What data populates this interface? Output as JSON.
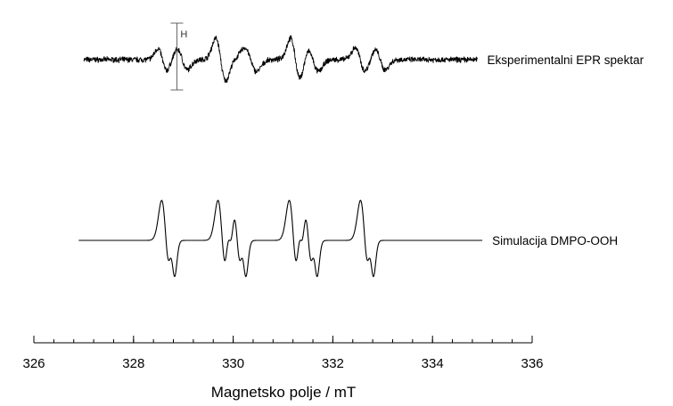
{
  "chart_data": {
    "type": "line",
    "xlabel": "Magnetsko polje  / mT",
    "ylabel": "",
    "xlim": [
      326,
      336
    ],
    "x_ticks_major": [
      "326",
      "328",
      "330",
      "332",
      "334",
      "336"
    ],
    "x_minor_step": 0.4,
    "grid": false,
    "legend": "inline labels at right end of each trace",
    "annotations": [
      {
        "text": "H",
        "x": 328.87
      }
    ],
    "series": [
      {
        "name": "Eksperimentalni EPR spektar",
        "x_range": [
          327.0,
          334.9
        ],
        "color": "#000000",
        "style": "noisy",
        "lines": [
          {
            "center": 328.58,
            "amplitude": 0.52,
            "width": 0.09
          },
          {
            "center": 328.98,
            "amplitude": 0.48,
            "width": 0.1
          },
          {
            "center": 329.75,
            "amplitude": 1.0,
            "width": 0.1
          },
          {
            "center": 330.35,
            "amplitude": 0.55,
            "width": 0.12
          },
          {
            "center": 331.25,
            "amplitude": 1.0,
            "width": 0.1
          },
          {
            "center": 331.6,
            "amplitude": 0.55,
            "width": 0.11
          },
          {
            "center": 332.55,
            "amplitude": 0.55,
            "width": 0.1
          },
          {
            "center": 332.95,
            "amplitude": 0.48,
            "width": 0.1
          }
        ]
      },
      {
        "name": "Simulacija DMPO-OOH",
        "x_range": [
          326.9,
          335.0
        ],
        "color": "#000000",
        "style": "smooth",
        "lines": [
          {
            "center": 328.65,
            "amplitude": 1.0,
            "width": 0.085
          },
          {
            "center": 328.79,
            "amplitude": 0.55,
            "width": 0.05
          },
          {
            "center": 329.78,
            "amplitude": 1.0,
            "width": 0.085
          },
          {
            "center": 329.93,
            "amplitude": 0.55,
            "width": 0.05
          },
          {
            "center": 330.08,
            "amplitude": 1.0,
            "width": 0.085
          },
          {
            "center": 330.22,
            "amplitude": 0.55,
            "width": 0.05
          },
          {
            "center": 331.21,
            "amplitude": 1.0,
            "width": 0.085
          },
          {
            "center": 331.36,
            "amplitude": 0.55,
            "width": 0.05
          },
          {
            "center": 331.51,
            "amplitude": 1.0,
            "width": 0.085
          },
          {
            "center": 331.65,
            "amplitude": 0.55,
            "width": 0.05
          },
          {
            "center": 332.64,
            "amplitude": 1.0,
            "width": 0.085
          },
          {
            "center": 332.78,
            "amplitude": 0.55,
            "width": 0.05
          }
        ]
      }
    ]
  }
}
